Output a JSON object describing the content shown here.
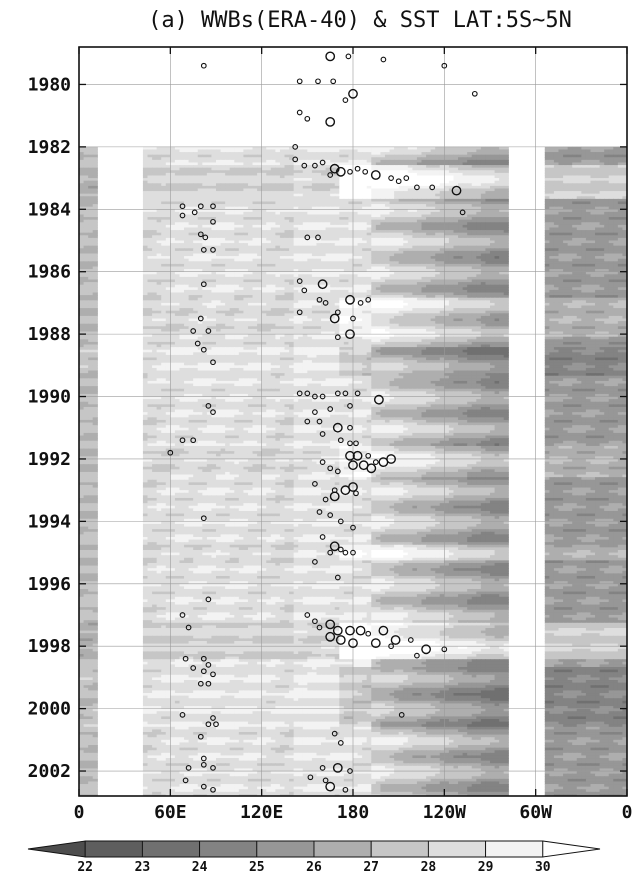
{
  "chart_data": {
    "type": "heatmap",
    "title": "(a) WWBs(ERA-40) & SST LAT:5S~5N",
    "xlabel": "",
    "ylabel": "",
    "x_ticks": [
      {
        "lon": 0,
        "label": "0"
      },
      {
        "lon": 60,
        "label": "60E"
      },
      {
        "lon": 120,
        "label": "120E"
      },
      {
        "lon": 180,
        "label": "180"
      },
      {
        "lon": 240,
        "label": "120W"
      },
      {
        "lon": 300,
        "label": "60W"
      },
      {
        "lon": 360,
        "label": "0"
      }
    ],
    "y_ticks": [
      1980,
      1982,
      1984,
      1986,
      1988,
      1990,
      1992,
      1994,
      1996,
      1998,
      2000,
      2002
    ],
    "xlim": [
      0,
      360
    ],
    "ylim": [
      1978.8,
      2002.8
    ],
    "sst_start_year": 1982,
    "sst_land_gaps": [
      [
        10,
        40
      ],
      [
        280,
        305
      ]
    ],
    "colorbar": {
      "levels": [
        22,
        23,
        24,
        25,
        26,
        27,
        28,
        29,
        30
      ],
      "colors": [
        "#4d4d4d",
        "#5e5e5e",
        "#707070",
        "#838383",
        "#979797",
        "#aeaeae",
        "#c6c6c6",
        "#dedede",
        "#f3f3f3",
        "#ffffff"
      ]
    },
    "wwb_events": [
      [
        165,
        1979.1,
        1
      ],
      [
        177,
        1979.1,
        0
      ],
      [
        82,
        1979.4,
        0
      ],
      [
        200,
        1979.2,
        0
      ],
      [
        240,
        1979.4,
        0
      ],
      [
        145,
        1979.9,
        0
      ],
      [
        157,
        1979.9,
        0
      ],
      [
        167,
        1979.9,
        0
      ],
      [
        180,
        1980.3,
        1
      ],
      [
        175,
        1980.5,
        0
      ],
      [
        260,
        1980.3,
        0
      ],
      [
        145,
        1980.9,
        0
      ],
      [
        150,
        1981.1,
        0
      ],
      [
        165,
        1981.2,
        1
      ],
      [
        142,
        1982.0,
        0
      ],
      [
        142,
        1982.4,
        0
      ],
      [
        148,
        1982.6,
        0
      ],
      [
        155,
        1982.6,
        0
      ],
      [
        160,
        1982.5,
        0
      ],
      [
        168,
        1982.7,
        1
      ],
      [
        172,
        1982.8,
        1
      ],
      [
        178,
        1982.8,
        0
      ],
      [
        183,
        1982.7,
        0
      ],
      [
        188,
        1982.8,
        0
      ],
      [
        195,
        1982.9,
        1
      ],
      [
        205,
        1983.0,
        0
      ],
      [
        210,
        1983.1,
        0
      ],
      [
        215,
        1983.0,
        0
      ],
      [
        222,
        1983.3,
        0
      ],
      [
        232,
        1983.3,
        0
      ],
      [
        248,
        1983.4,
        1
      ],
      [
        165,
        1982.9,
        0
      ],
      [
        80,
        1983.9,
        0
      ],
      [
        68,
        1983.9,
        0
      ],
      [
        76,
        1984.1,
        0
      ],
      [
        88,
        1983.9,
        0
      ],
      [
        252,
        1984.1,
        0
      ],
      [
        68,
        1984.2,
        0
      ],
      [
        88,
        1984.4,
        0
      ],
      [
        80,
        1984.8,
        0
      ],
      [
        83,
        1984.9,
        0
      ],
      [
        88,
        1985.3,
        0
      ],
      [
        150,
        1984.9,
        0
      ],
      [
        157,
        1984.9,
        0
      ],
      [
        82,
        1985.3,
        0
      ],
      [
        145,
        1986.3,
        0
      ],
      [
        160,
        1986.4,
        1
      ],
      [
        148,
        1986.6,
        0
      ],
      [
        82,
        1986.4,
        0
      ],
      [
        158,
        1986.9,
        0
      ],
      [
        162,
        1987.0,
        0
      ],
      [
        178,
        1986.9,
        1
      ],
      [
        185,
        1987.0,
        0
      ],
      [
        190,
        1986.9,
        0
      ],
      [
        145,
        1987.3,
        0
      ],
      [
        170,
        1987.3,
        0
      ],
      [
        180,
        1987.5,
        0
      ],
      [
        168,
        1987.5,
        1
      ],
      [
        80,
        1987.5,
        0
      ],
      [
        75,
        1987.9,
        0
      ],
      [
        85,
        1987.9,
        0
      ],
      [
        78,
        1988.3,
        0
      ],
      [
        82,
        1988.5,
        0
      ],
      [
        88,
        1988.9,
        0
      ],
      [
        178,
        1988.0,
        1
      ],
      [
        170,
        1988.1,
        0
      ],
      [
        145,
        1989.9,
        0
      ],
      [
        150,
        1989.9,
        0
      ],
      [
        155,
        1990.0,
        0
      ],
      [
        160,
        1990.0,
        0
      ],
      [
        170,
        1989.9,
        0
      ],
      [
        175,
        1989.9,
        0
      ],
      [
        183,
        1989.9,
        0
      ],
      [
        197,
        1990.1,
        1
      ],
      [
        178,
        1990.3,
        0
      ],
      [
        155,
        1990.5,
        0
      ],
      [
        165,
        1990.4,
        0
      ],
      [
        150,
        1990.8,
        0
      ],
      [
        158,
        1990.8,
        0
      ],
      [
        170,
        1991.0,
        1
      ],
      [
        178,
        1991.0,
        0
      ],
      [
        160,
        1991.2,
        0
      ],
      [
        172,
        1991.4,
        0
      ],
      [
        178,
        1991.5,
        0
      ],
      [
        182,
        1991.5,
        0
      ],
      [
        88,
        1990.5,
        0
      ],
      [
        85,
        1990.3,
        0
      ],
      [
        75,
        1991.4,
        0
      ],
      [
        68,
        1991.4,
        0
      ],
      [
        60,
        1991.8,
        0
      ],
      [
        178,
        1991.9,
        1
      ],
      [
        183,
        1991.9,
        1
      ],
      [
        190,
        1991.9,
        0
      ],
      [
        195,
        1992.1,
        0
      ],
      [
        200,
        1992.1,
        1
      ],
      [
        205,
        1992.0,
        1
      ],
      [
        180,
        1992.2,
        1
      ],
      [
        187,
        1992.2,
        1
      ],
      [
        192,
        1992.3,
        1
      ],
      [
        165,
        1992.3,
        0
      ],
      [
        170,
        1992.4,
        0
      ],
      [
        160,
        1992.1,
        0
      ],
      [
        155,
        1992.8,
        0
      ],
      [
        168,
        1993.0,
        0
      ],
      [
        175,
        1993.0,
        1
      ],
      [
        180,
        1992.9,
        1
      ],
      [
        182,
        1993.1,
        0
      ],
      [
        168,
        1993.2,
        1
      ],
      [
        162,
        1993.3,
        0
      ],
      [
        158,
        1993.7,
        0
      ],
      [
        165,
        1993.8,
        0
      ],
      [
        172,
        1994.0,
        0
      ],
      [
        180,
        1994.2,
        0
      ],
      [
        160,
        1994.5,
        0
      ],
      [
        168,
        1994.8,
        1
      ],
      [
        172,
        1994.9,
        0
      ],
      [
        175,
        1995.0,
        0
      ],
      [
        165,
        1995.0,
        0
      ],
      [
        180,
        1995.0,
        0
      ],
      [
        82,
        1993.9,
        0
      ],
      [
        155,
        1995.3,
        0
      ],
      [
        170,
        1995.8,
        0
      ],
      [
        85,
        1996.5,
        0
      ],
      [
        68,
        1997.0,
        0
      ],
      [
        72,
        1997.4,
        0
      ],
      [
        150,
        1997.0,
        0
      ],
      [
        155,
        1997.2,
        0
      ],
      [
        158,
        1997.4,
        0
      ],
      [
        165,
        1997.3,
        1
      ],
      [
        170,
        1997.5,
        1
      ],
      [
        178,
        1997.5,
        1
      ],
      [
        185,
        1997.5,
        1
      ],
      [
        190,
        1997.6,
        0
      ],
      [
        200,
        1997.5,
        1
      ],
      [
        208,
        1997.8,
        1
      ],
      [
        218,
        1997.8,
        0
      ],
      [
        228,
        1998.1,
        1
      ],
      [
        240,
        1998.1,
        0
      ],
      [
        165,
        1997.7,
        1
      ],
      [
        172,
        1997.8,
        1
      ],
      [
        180,
        1997.9,
        1
      ],
      [
        195,
        1997.9,
        1
      ],
      [
        205,
        1998.0,
        0
      ],
      [
        222,
        1998.3,
        0
      ],
      [
        70,
        1998.4,
        0
      ],
      [
        82,
        1998.4,
        0
      ],
      [
        85,
        1998.6,
        0
      ],
      [
        75,
        1998.7,
        0
      ],
      [
        82,
        1998.8,
        0
      ],
      [
        88,
        1998.9,
        0
      ],
      [
        80,
        1999.2,
        0
      ],
      [
        85,
        1999.2,
        0
      ],
      [
        68,
        2000.2,
        0
      ],
      [
        88,
        2000.3,
        0
      ],
      [
        85,
        2000.5,
        0
      ],
      [
        90,
        2000.5,
        0
      ],
      [
        80,
        2000.9,
        0
      ],
      [
        212,
        2000.2,
        0
      ],
      [
        168,
        2000.8,
        0
      ],
      [
        172,
        2001.1,
        0
      ],
      [
        82,
        2001.6,
        0
      ],
      [
        82,
        2001.8,
        0
      ],
      [
        88,
        2001.9,
        0
      ],
      [
        72,
        2001.9,
        0
      ],
      [
        160,
        2001.9,
        0
      ],
      [
        170,
        2001.9,
        1
      ],
      [
        178,
        2002.0,
        0
      ],
      [
        152,
        2002.2,
        0
      ],
      [
        162,
        2002.3,
        0
      ],
      [
        165,
        2002.5,
        1
      ],
      [
        175,
        2002.6,
        0
      ],
      [
        168,
        2002.9,
        0
      ],
      [
        70,
        2002.3,
        0
      ],
      [
        82,
        2002.5,
        0
      ],
      [
        88,
        2002.6,
        0
      ]
    ]
  }
}
